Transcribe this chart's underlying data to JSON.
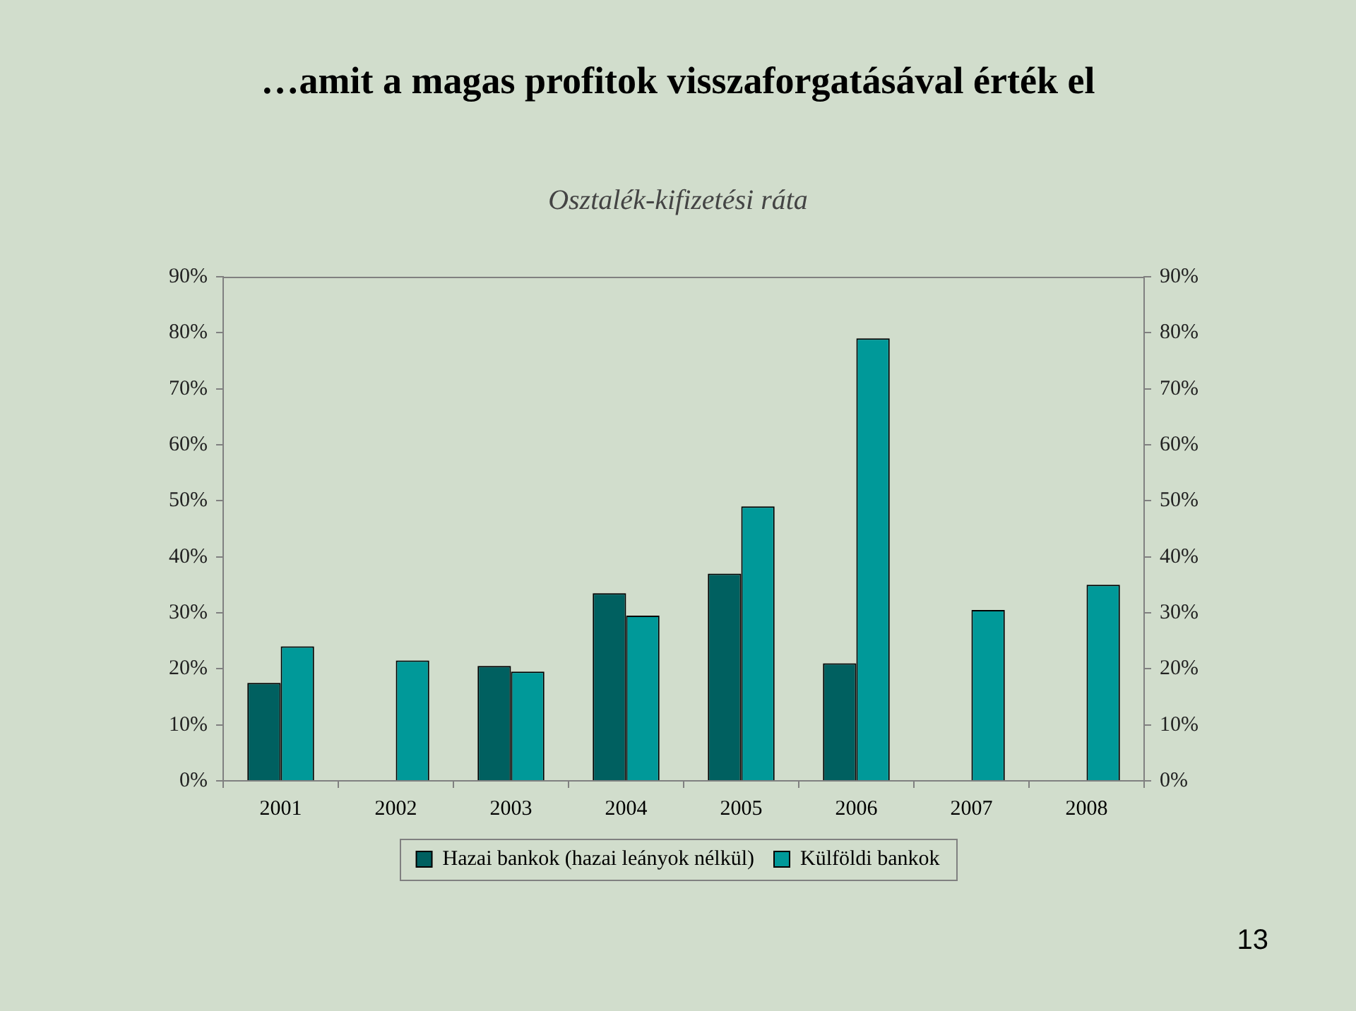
{
  "chart_data": {
    "type": "bar",
    "title": "…amit a magas profitok visszaforgatásával érték el",
    "subtitle": "Osztalék-kifizetési ráta",
    "categories": [
      "2001",
      "2002",
      "2003",
      "2004",
      "2005",
      "2006",
      "2007",
      "2008"
    ],
    "series": [
      {
        "name": "Hazai bankok (hazai leányok nélkül)",
        "color": "#006060",
        "values": [
          17.5,
          null,
          20.5,
          33.5,
          37,
          21,
          null,
          null
        ]
      },
      {
        "name": "Külföldi bankok",
        "color": "#009999",
        "values": [
          24,
          21.5,
          19.5,
          29.5,
          49,
          79,
          30.5,
          35
        ]
      }
    ],
    "ylim": [
      0,
      90
    ],
    "yticks": [
      {
        "value": 0,
        "label": "0%"
      },
      {
        "value": 10,
        "label": "10%"
      },
      {
        "value": 20,
        "label": "20%"
      },
      {
        "value": 30,
        "label": "30%"
      },
      {
        "value": 40,
        "label": "40%"
      },
      {
        "value": 50,
        "label": "50%"
      },
      {
        "value": 60,
        "label": "60%"
      },
      {
        "value": 70,
        "label": "70%"
      },
      {
        "value": 80,
        "label": "80%"
      },
      {
        "value": 90,
        "label": "90%"
      }
    ],
    "y2lim": [
      0,
      90
    ],
    "y2ticks": [
      {
        "value": 0,
        "label": "0%"
      },
      {
        "value": 10,
        "label": "10%"
      },
      {
        "value": 20,
        "label": "20%"
      },
      {
        "value": 30,
        "label": "30%"
      },
      {
        "value": 40,
        "label": "40%"
      },
      {
        "value": 50,
        "label": "50%"
      },
      {
        "value": 60,
        "label": "60%"
      },
      {
        "value": 70,
        "label": "70%"
      },
      {
        "value": 80,
        "label": "80%"
      },
      {
        "value": 90,
        "label": "90%"
      }
    ],
    "grid": false,
    "legend": "bottom",
    "annotations": [
      "13"
    ]
  }
}
